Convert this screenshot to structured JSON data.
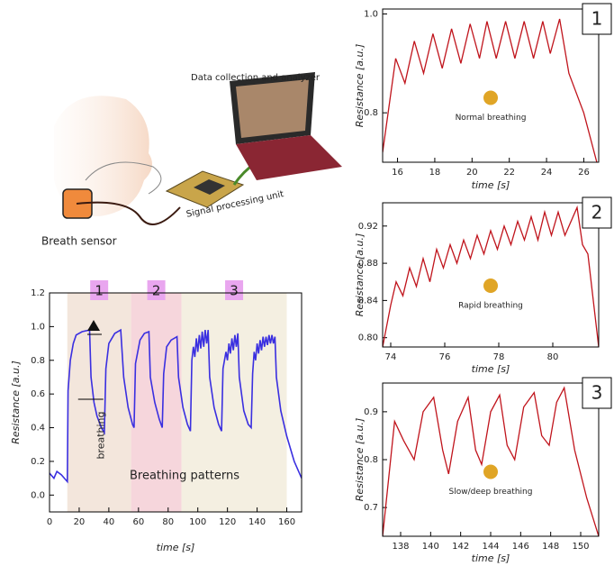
{
  "illustration": {
    "labels": [
      "Data collection and analyzer",
      "Signal processing unit",
      "Breath sensor"
    ]
  },
  "chart_data": [
    {
      "type": "line",
      "xlabel": "time [s]",
      "ylabel": "Resistance [a.u.]",
      "color": "#3a2fe0",
      "xlim": [
        0,
        170
      ],
      "ylim": [
        -0.1,
        1.2
      ],
      "xticks": [
        0,
        20,
        40,
        60,
        80,
        100,
        120,
        140,
        160
      ],
      "yticks": [
        {
          "value": 0,
          "label": "0.0"
        },
        0.2,
        0.4,
        0.6,
        0.8,
        {
          "value": 1,
          "label": "1.0"
        },
        1.2
      ],
      "regions": [
        {
          "label": "1",
          "start": 12,
          "end": 55,
          "color": "#f3e6dc"
        },
        {
          "label": "2",
          "start": 55,
          "end": 89,
          "color": "#f6d6dc"
        },
        {
          "label": "3",
          "start": 89,
          "end": 160,
          "color": "#f4efe1"
        }
      ],
      "annotations": [
        "breathing",
        "Breathing patterns"
      ],
      "x": [
        0,
        3,
        5,
        8,
        10,
        12,
        12.5,
        14,
        16,
        18,
        22,
        27,
        28,
        30,
        32,
        35,
        37,
        38,
        40,
        44,
        48,
        50,
        53,
        56,
        57,
        58,
        61,
        64,
        67,
        68,
        71,
        74,
        76,
        77,
        79,
        82,
        86,
        87,
        90,
        93,
        95,
        96,
        97,
        98,
        99,
        100,
        101,
        102,
        103,
        104,
        105,
        106,
        107,
        108,
        111,
        114,
        116,
        117,
        119,
        120,
        121,
        122,
        123,
        124,
        125,
        126,
        127,
        128,
        131,
        134,
        136,
        137,
        138,
        139,
        140,
        141,
        142,
        143,
        144,
        145,
        146,
        147,
        148,
        149,
        150,
        151,
        152,
        153,
        156,
        160,
        165,
        170
      ],
      "values": [
        0.13,
        0.1,
        0.14,
        0.12,
        0.1,
        0.08,
        0.62,
        0.8,
        0.9,
        0.95,
        0.97,
        0.98,
        0.7,
        0.55,
        0.47,
        0.4,
        0.37,
        0.75,
        0.9,
        0.96,
        0.98,
        0.7,
        0.52,
        0.42,
        0.4,
        0.78,
        0.92,
        0.96,
        0.97,
        0.7,
        0.55,
        0.45,
        0.4,
        0.72,
        0.88,
        0.92,
        0.94,
        0.7,
        0.52,
        0.42,
        0.38,
        0.8,
        0.88,
        0.82,
        0.93,
        0.85,
        0.95,
        0.87,
        0.97,
        0.88,
        0.98,
        0.9,
        0.98,
        0.7,
        0.52,
        0.42,
        0.38,
        0.75,
        0.85,
        0.8,
        0.9,
        0.84,
        0.93,
        0.86,
        0.95,
        0.88,
        0.96,
        0.7,
        0.5,
        0.42,
        0.4,
        0.72,
        0.85,
        0.8,
        0.9,
        0.84,
        0.92,
        0.86,
        0.94,
        0.88,
        0.94,
        0.89,
        0.95,
        0.9,
        0.95,
        0.9,
        0.94,
        0.7,
        0.5,
        0.35,
        0.2,
        0.1
      ]
    },
    {
      "type": "line",
      "label": "1",
      "caption": "Normal breathing",
      "xlabel": "time [s]",
      "ylabel": "Resistance [a.u.]",
      "color": "#c0141c",
      "xlim": [
        15.2,
        26.8
      ],
      "ylim": [
        0.7,
        1.01
      ],
      "xticks": [
        16,
        18,
        20,
        22,
        24,
        26
      ],
      "yticks": [
        0.8,
        {
          "value": 1,
          "label": "1.0"
        }
      ],
      "x": [
        15.2,
        15.9,
        16.4,
        16.9,
        17.4,
        17.9,
        18.4,
        18.9,
        19.4,
        19.9,
        20.4,
        20.8,
        21.3,
        21.8,
        22.3,
        22.8,
        23.3,
        23.8,
        24.2,
        24.7,
        25.2,
        26,
        26.7
      ],
      "values": [
        0.72,
        0.91,
        0.86,
        0.945,
        0.88,
        0.96,
        0.89,
        0.97,
        0.9,
        0.98,
        0.91,
        0.985,
        0.91,
        0.985,
        0.91,
        0.985,
        0.91,
        0.985,
        0.92,
        0.99,
        0.88,
        0.8,
        0.7
      ]
    },
    {
      "type": "line",
      "label": "2",
      "caption": "Rapid breathing",
      "xlabel": "time [s]",
      "ylabel": "Resistance [a.u.]",
      "color": "#c0141c",
      "xlim": [
        73.7,
        81.7
      ],
      "ylim": [
        0.79,
        0.945
      ],
      "xticks": [
        74,
        76,
        78,
        80
      ],
      "yticks": [
        {
          "value": 0.8,
          "label": "0.80"
        },
        0.84,
        0.88,
        0.92
      ],
      "x": [
        73.7,
        74,
        74.2,
        74.45,
        74.7,
        74.95,
        75.2,
        75.45,
        75.7,
        75.95,
        76.2,
        76.45,
        76.7,
        76.95,
        77.2,
        77.45,
        77.7,
        77.95,
        78.2,
        78.45,
        78.7,
        78.95,
        79.2,
        79.45,
        79.7,
        79.95,
        80.2,
        80.45,
        80.9,
        81.1,
        81.3,
        81.7
      ],
      "values": [
        0.79,
        0.835,
        0.86,
        0.845,
        0.875,
        0.855,
        0.885,
        0.86,
        0.895,
        0.875,
        0.9,
        0.88,
        0.905,
        0.885,
        0.91,
        0.89,
        0.915,
        0.895,
        0.92,
        0.9,
        0.925,
        0.905,
        0.93,
        0.905,
        0.935,
        0.91,
        0.935,
        0.91,
        0.94,
        0.9,
        0.89,
        0.79
      ]
    },
    {
      "type": "line",
      "label": "3",
      "caption": "Slow/deep breathing",
      "xlabel": "time [s]",
      "ylabel": "Resistance [a.u.]",
      "color": "#c0141c",
      "xlim": [
        136.8,
        151.2
      ],
      "ylim": [
        0.64,
        0.96
      ],
      "xticks": [
        138,
        140,
        142,
        144,
        146,
        148,
        150
      ],
      "yticks": [
        0.7,
        0.8,
        0.9
      ],
      "x": [
        136.8,
        137.6,
        138.2,
        138.9,
        139.5,
        140.2,
        140.8,
        141.2,
        141.8,
        142.5,
        143,
        143.4,
        144,
        144.6,
        145.1,
        145.6,
        146.2,
        146.9,
        147.4,
        147.9,
        148.4,
        148.9,
        149.6,
        150.4,
        151.2
      ],
      "values": [
        0.64,
        0.88,
        0.84,
        0.8,
        0.9,
        0.93,
        0.82,
        0.77,
        0.88,
        0.93,
        0.82,
        0.79,
        0.9,
        0.935,
        0.83,
        0.8,
        0.91,
        0.94,
        0.85,
        0.83,
        0.92,
        0.95,
        0.82,
        0.72,
        0.64
      ]
    }
  ]
}
